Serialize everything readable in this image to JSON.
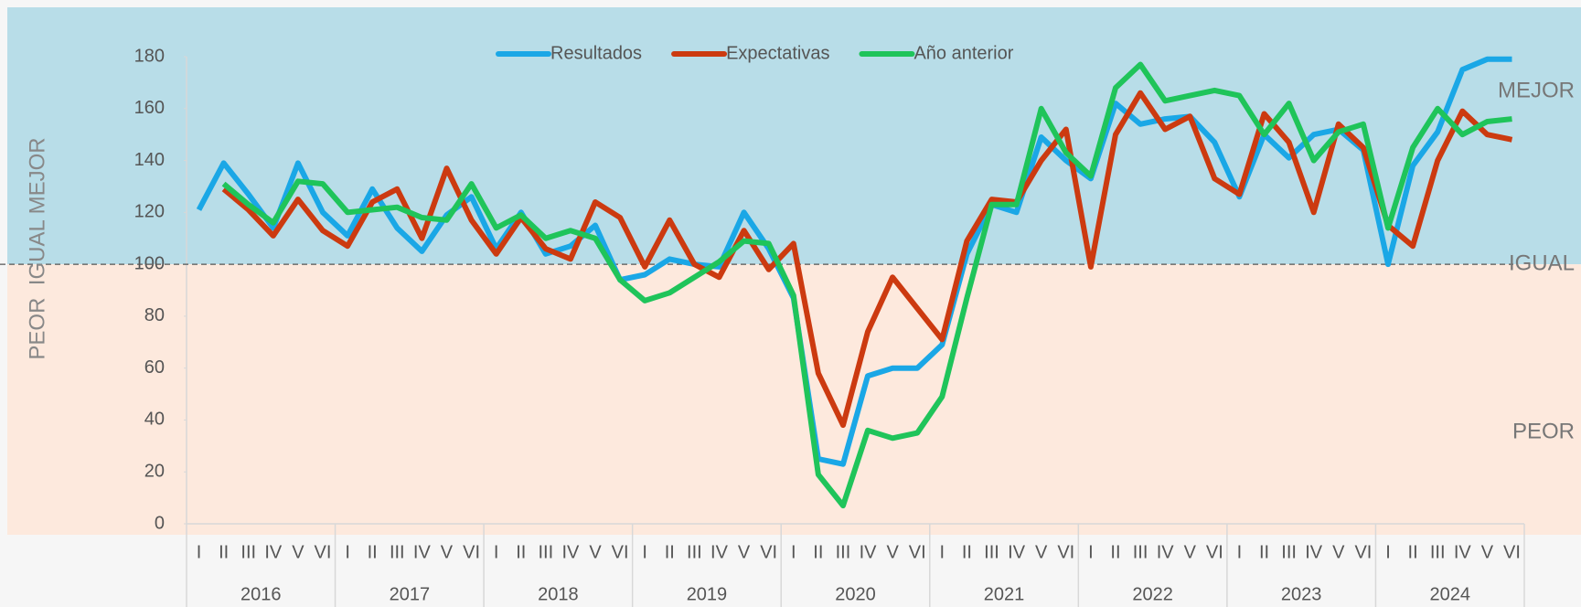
{
  "chart_data": {
    "type": "line",
    "y_axis_title": "PEOR  IGUAL MEJOR",
    "categories": [
      "I",
      "II",
      "III",
      "IV",
      "V",
      "VI",
      "I",
      "II",
      "III",
      "IV",
      "V",
      "VI",
      "I",
      "II",
      "III",
      "IV",
      "V",
      "VI",
      "I",
      "II",
      "III",
      "IV",
      "V",
      "VI",
      "I",
      "II",
      "III",
      "IV",
      "V",
      "VI",
      "I",
      "II",
      "III",
      "IV",
      "V",
      "VI",
      "I",
      "II",
      "III",
      "IV",
      "V",
      "VI",
      "I",
      "II",
      "III",
      "IV",
      "V",
      "VI",
      "I",
      "II",
      "III",
      "IV",
      "V",
      "VI"
    ],
    "category_groups": [
      "2016",
      "2017",
      "2018",
      "2019",
      "2020",
      "2021",
      "2022",
      "2023",
      "2024"
    ],
    "series": [
      {
        "name": "Resultados",
        "color": "#1aa7e6",
        "values": [
          121,
          139,
          127,
          114,
          139,
          120,
          111,
          129,
          114,
          105,
          119,
          126,
          106,
          120,
          104,
          107,
          115,
          94,
          96,
          102,
          100,
          99,
          120,
          106,
          87,
          25,
          23,
          57,
          60,
          60,
          69,
          104,
          123,
          120,
          149,
          140,
          133,
          162,
          154,
          156,
          157,
          147,
          126,
          150,
          141,
          150,
          152,
          144,
          100,
          138,
          151,
          175,
          179,
          179
        ]
      },
      {
        "name": "Expectativas",
        "color": "#cc3a10",
        "values": [
          null,
          129,
          121,
          111,
          125,
          113,
          107,
          124,
          129,
          110,
          137,
          117,
          104,
          118,
          106,
          102,
          124,
          118,
          99,
          117,
          100,
          95,
          113,
          98,
          108,
          58,
          38,
          74,
          95,
          83,
          71,
          109,
          125,
          124,
          140,
          152,
          99,
          150,
          166,
          152,
          157,
          133,
          127,
          158,
          147,
          120,
          154,
          145,
          115,
          107,
          140,
          159,
          150,
          148
        ]
      },
      {
        "name": "Año anterior",
        "color": "#1fc45a",
        "values": [
          null,
          131,
          123,
          116,
          132,
          131,
          120,
          121,
          122,
          118,
          117,
          131,
          114,
          119,
          110,
          113,
          110,
          94,
          86,
          89,
          95,
          101,
          109,
          108,
          88,
          19,
          7,
          36,
          33,
          35,
          49,
          87,
          123,
          123,
          160,
          143,
          134,
          168,
          177,
          163,
          165,
          167,
          165,
          150,
          162,
          140,
          151,
          154,
          114,
          145,
          160,
          150,
          155,
          156
        ]
      }
    ],
    "ylim": [
      0,
      180
    ],
    "yticks": [
      0,
      20,
      40,
      60,
      80,
      100,
      120,
      140,
      160,
      180
    ],
    "threshold": 100,
    "band_colors": [
      "#b8dde8",
      "#fde9dd"
    ],
    "zone_labels": [
      "MEJOR",
      "IGUAL",
      "PEOR"
    ],
    "legend": "top"
  }
}
